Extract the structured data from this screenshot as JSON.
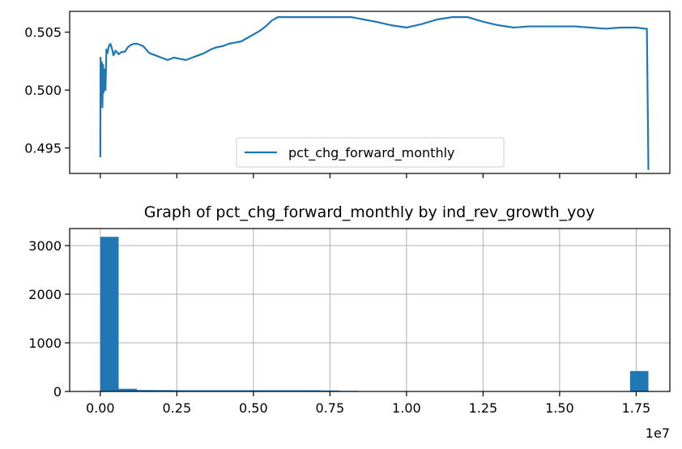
{
  "chart_data": [
    {
      "type": "line",
      "title": "",
      "xlabel": "",
      "ylabel": "",
      "xlim": [
        -1000000,
        18600000
      ],
      "ylim": [
        0.4928,
        0.5068
      ],
      "yticks": [
        0.495,
        0.5,
        0.505
      ],
      "ytick_labels": [
        "0.495",
        "0.500",
        "0.505"
      ],
      "xticks": [
        0,
        2500000,
        5000000,
        7500000,
        10000000,
        12500000,
        15000000,
        17500000
      ],
      "xtick_labels_visible": false,
      "grid": false,
      "legend": {
        "placement": "lower-center"
      },
      "color": "#1f77b4",
      "series": [
        {
          "name": "pct_chg_forward_monthly",
          "x": [
            0,
            10000,
            30000,
            50000,
            70000,
            90000,
            110000,
            140000,
            170000,
            200000,
            240000,
            280000,
            330000,
            380000,
            430000,
            500000,
            600000,
            700000,
            800000,
            900000,
            1000000,
            1100000,
            1200000,
            1400000,
            1600000,
            1800000,
            2000000,
            2200000,
            2400000,
            2600000,
            2800000,
            3000000,
            3200000,
            3400000,
            3600000,
            3800000,
            4000000,
            4200000,
            4400000,
            4600000,
            4800000,
            5000000,
            5200000,
            5400000,
            5600000,
            5800000,
            6000000,
            6200000,
            6400000,
            6600000,
            6800000,
            7000000,
            7200000,
            7400000,
            7600000,
            7800000,
            8000000,
            8200000,
            8400000,
            8600000,
            8800000,
            9000000,
            9500000,
            10000000,
            10500000,
            11000000,
            11500000,
            12000000,
            12500000,
            13000000,
            13500000,
            14000000,
            14500000,
            15000000,
            15500000,
            16000000,
            16500000,
            17000000,
            17500000,
            17800000,
            17850000,
            17900000
          ],
          "y": [
            0.4942,
            0.5028,
            0.4995,
            0.5024,
            0.4985,
            0.5022,
            0.4998,
            0.5018,
            0.5,
            0.5035,
            0.5032,
            0.5038,
            0.504,
            0.5036,
            0.503,
            0.5034,
            0.5031,
            0.5033,
            0.5033,
            0.5037,
            0.5039,
            0.504,
            0.504,
            0.5038,
            0.5032,
            0.503,
            0.5028,
            0.5026,
            0.5028,
            0.5027,
            0.5026,
            0.5028,
            0.503,
            0.5032,
            0.5035,
            0.5037,
            0.5038,
            0.504,
            0.5041,
            0.5042,
            0.5045,
            0.5048,
            0.5051,
            0.5055,
            0.506,
            0.5063,
            0.5063,
            0.5063,
            0.5063,
            0.5063,
            0.5063,
            0.5063,
            0.5063,
            0.5063,
            0.5063,
            0.5063,
            0.5063,
            0.5063,
            0.5062,
            0.5061,
            0.506,
            0.5059,
            0.5056,
            0.5054,
            0.5057,
            0.5061,
            0.5063,
            0.5063,
            0.5059,
            0.5056,
            0.5054,
            0.5055,
            0.5055,
            0.5055,
            0.5055,
            0.5054,
            0.5053,
            0.5054,
            0.5054,
            0.5053,
            0.5053,
            0.4931
          ]
        }
      ]
    },
    {
      "type": "bar",
      "title": "Graph of pct_chg_forward_monthly by ind_rev_growth_yoy",
      "xlabel": "",
      "ylabel": "",
      "xlim": [
        -1000000,
        18600000
      ],
      "ylim": [
        0,
        3350
      ],
      "xticks": [
        0,
        2500000,
        5000000,
        7500000,
        10000000,
        12500000,
        15000000,
        17500000
      ],
      "xtick_labels": [
        "0.00",
        "0.25",
        "0.50",
        "0.75",
        "1.00",
        "1.25",
        "1.50",
        "1.75"
      ],
      "x_offset_label": "1e7",
      "yticks": [
        0,
        1000,
        2000,
        3000
      ],
      "ytick_labels": [
        "0",
        "1000",
        "2000",
        "3000"
      ],
      "grid": true,
      "color": "#1f77b4",
      "bin_width": 600000,
      "bins": [
        {
          "x_start": 0,
          "x_end": 600000,
          "value": 3180
        },
        {
          "x_start": 600000,
          "x_end": 1200000,
          "value": 55
        },
        {
          "x_start": 1200000,
          "x_end": 1800000,
          "value": 30
        },
        {
          "x_start": 1800000,
          "x_end": 2400000,
          "value": 28
        },
        {
          "x_start": 2400000,
          "x_end": 3000000,
          "value": 25
        },
        {
          "x_start": 3000000,
          "x_end": 3600000,
          "value": 25
        },
        {
          "x_start": 3600000,
          "x_end": 4200000,
          "value": 25
        },
        {
          "x_start": 4200000,
          "x_end": 4800000,
          "value": 25
        },
        {
          "x_start": 4800000,
          "x_end": 5400000,
          "value": 25
        },
        {
          "x_start": 5400000,
          "x_end": 6000000,
          "value": 25
        },
        {
          "x_start": 6000000,
          "x_end": 6600000,
          "value": 25
        },
        {
          "x_start": 6600000,
          "x_end": 7200000,
          "value": 25
        },
        {
          "x_start": 7200000,
          "x_end": 7800000,
          "value": 20
        },
        {
          "x_start": 7800000,
          "x_end": 8400000,
          "value": 12
        },
        {
          "x_start": 8400000,
          "x_end": 9000000,
          "value": 0
        },
        {
          "x_start": 9000000,
          "x_end": 9600000,
          "value": 0
        },
        {
          "x_start": 9600000,
          "x_end": 10200000,
          "value": 0
        },
        {
          "x_start": 10200000,
          "x_end": 10800000,
          "value": 0
        },
        {
          "x_start": 10800000,
          "x_end": 11400000,
          "value": 0
        },
        {
          "x_start": 11400000,
          "x_end": 12000000,
          "value": 0
        },
        {
          "x_start": 12000000,
          "x_end": 12600000,
          "value": 0
        },
        {
          "x_start": 12600000,
          "x_end": 13200000,
          "value": 0
        },
        {
          "x_start": 13200000,
          "x_end": 13800000,
          "value": 0
        },
        {
          "x_start": 13800000,
          "x_end": 14400000,
          "value": 0
        },
        {
          "x_start": 14400000,
          "x_end": 15000000,
          "value": 0
        },
        {
          "x_start": 15000000,
          "x_end": 15600000,
          "value": 0
        },
        {
          "x_start": 15600000,
          "x_end": 16200000,
          "value": 0
        },
        {
          "x_start": 16200000,
          "x_end": 16800000,
          "value": 0
        },
        {
          "x_start": 16800000,
          "x_end": 17300000,
          "value": 0
        },
        {
          "x_start": 17300000,
          "x_end": 17900000,
          "value": 420
        }
      ]
    }
  ]
}
